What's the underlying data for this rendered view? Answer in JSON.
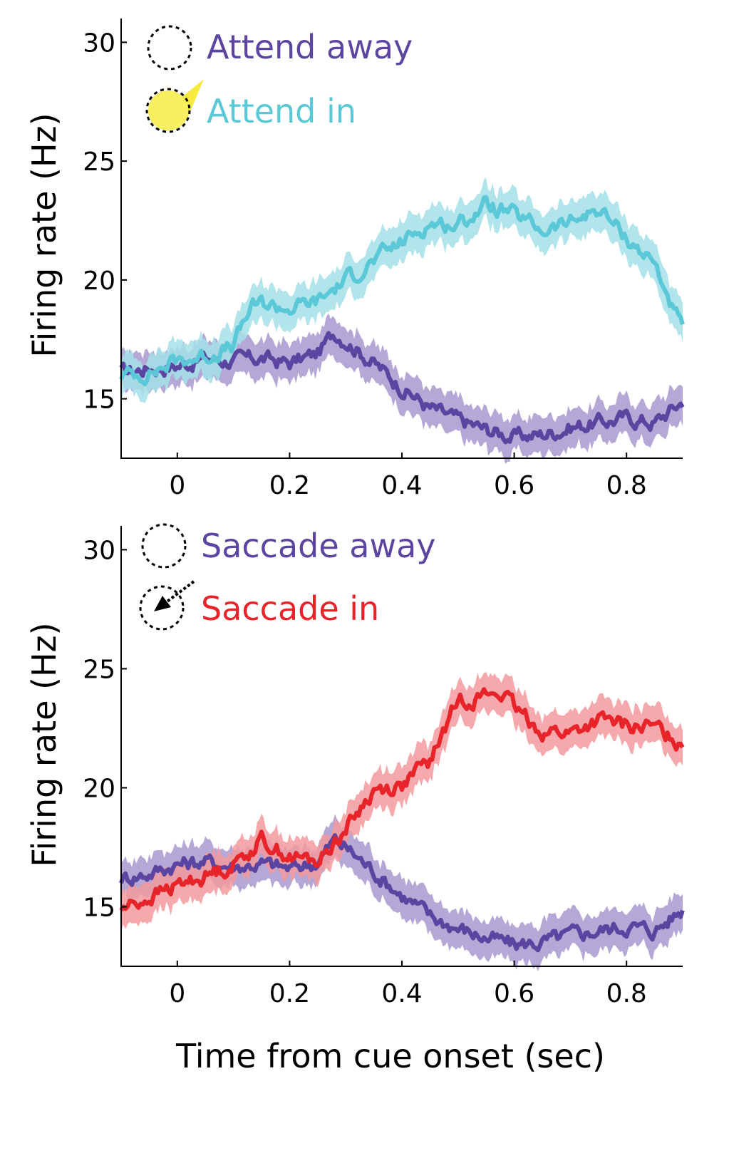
{
  "chart_data": [
    {
      "type": "line",
      "xlabel": "",
      "ylabel": "Firing rate (Hz)",
      "xlim": [
        -0.1,
        0.9
      ],
      "ylim": [
        12.5,
        31
      ],
      "xticks": [
        0,
        0.2,
        0.4,
        0.6,
        0.8
      ],
      "xtick_labels": [
        "0",
        "0.2",
        "0.4",
        "0.6",
        "0.8"
      ],
      "yticks": [
        15,
        20,
        25,
        30
      ],
      "ytick_labels": [
        "15",
        "20",
        "25",
        "30"
      ],
      "band_halfwidth": 0.8,
      "legend_position": "top-left",
      "legend_icons": [
        "dashed-circle-icon",
        "spotlight-circle-icon"
      ],
      "series": [
        {
          "name": "Attend away",
          "color": "#5b45a0",
          "band_color": "#a898cf",
          "x": [
            -0.1,
            -0.05,
            0.0,
            0.05,
            0.1,
            0.15,
            0.2,
            0.25,
            0.28,
            0.3,
            0.35,
            0.4,
            0.45,
            0.5,
            0.55,
            0.6,
            0.65,
            0.7,
            0.75,
            0.8,
            0.85,
            0.9
          ],
          "y": [
            16.1,
            16.3,
            16.4,
            16.7,
            16.6,
            16.7,
            16.5,
            16.9,
            17.8,
            17.5,
            16.5,
            15.5,
            14.6,
            14.1,
            13.7,
            13.4,
            13.5,
            13.8,
            14.0,
            14.2,
            14.0,
            14.9
          ]
        },
        {
          "name": "Attend in",
          "color": "#5bc8d8",
          "band_color": "#a3e0e8",
          "x": [
            -0.1,
            -0.05,
            0.0,
            0.05,
            0.1,
            0.13,
            0.15,
            0.2,
            0.25,
            0.3,
            0.35,
            0.4,
            0.45,
            0.5,
            0.55,
            0.6,
            0.65,
            0.7,
            0.75,
            0.8,
            0.85,
            0.9
          ],
          "y": [
            16.0,
            16.1,
            16.6,
            16.8,
            17.2,
            18.8,
            19.0,
            18.8,
            19.1,
            20.0,
            20.8,
            21.6,
            22.4,
            22.3,
            23.2,
            22.7,
            22.1,
            22.4,
            23.0,
            21.8,
            20.7,
            17.8
          ]
        }
      ]
    },
    {
      "type": "line",
      "xlabel": "Time from cue onset (sec)",
      "ylabel": "Firing rate (Hz)",
      "xlim": [
        -0.1,
        0.9
      ],
      "ylim": [
        12.5,
        31
      ],
      "xticks": [
        0,
        0.2,
        0.4,
        0.6,
        0.8
      ],
      "xtick_labels": [
        "0",
        "0.2",
        "0.4",
        "0.6",
        "0.8"
      ],
      "yticks": [
        15,
        20,
        25,
        30
      ],
      "ytick_labels": [
        "15",
        "20",
        "25",
        "30"
      ],
      "band_halfwidth": 0.8,
      "legend_position": "top-left",
      "legend_icons": [
        "dashed-circle-icon",
        "saccade-arrow-icon"
      ],
      "series": [
        {
          "name": "Saccade away",
          "color": "#5b45a0",
          "band_color": "#a898cf",
          "x": [
            -0.1,
            -0.05,
            0.0,
            0.05,
            0.1,
            0.15,
            0.2,
            0.25,
            0.28,
            0.3,
            0.35,
            0.4,
            0.45,
            0.5,
            0.55,
            0.6,
            0.65,
            0.7,
            0.75,
            0.8,
            0.85,
            0.9
          ],
          "y": [
            16.2,
            16.4,
            16.8,
            16.9,
            16.7,
            16.8,
            16.6,
            16.9,
            17.8,
            17.5,
            16.5,
            15.5,
            14.6,
            14.1,
            13.7,
            13.4,
            13.5,
            13.8,
            14.0,
            14.2,
            14.0,
            14.9
          ]
        },
        {
          "name": "Saccade in",
          "color": "#e8242b",
          "band_color": "#f39a9d",
          "x": [
            -0.1,
            -0.05,
            0.0,
            0.05,
            0.1,
            0.15,
            0.2,
            0.25,
            0.3,
            0.35,
            0.4,
            0.45,
            0.5,
            0.55,
            0.58,
            0.6,
            0.65,
            0.7,
            0.75,
            0.8,
            0.85,
            0.9
          ],
          "y": [
            14.9,
            15.4,
            15.9,
            16.3,
            16.8,
            17.8,
            17.1,
            16.9,
            18.3,
            19.9,
            20.1,
            21.1,
            23.7,
            23.9,
            24.0,
            23.3,
            22.4,
            22.3,
            22.8,
            22.6,
            22.5,
            21.9
          ]
        }
      ]
    }
  ]
}
